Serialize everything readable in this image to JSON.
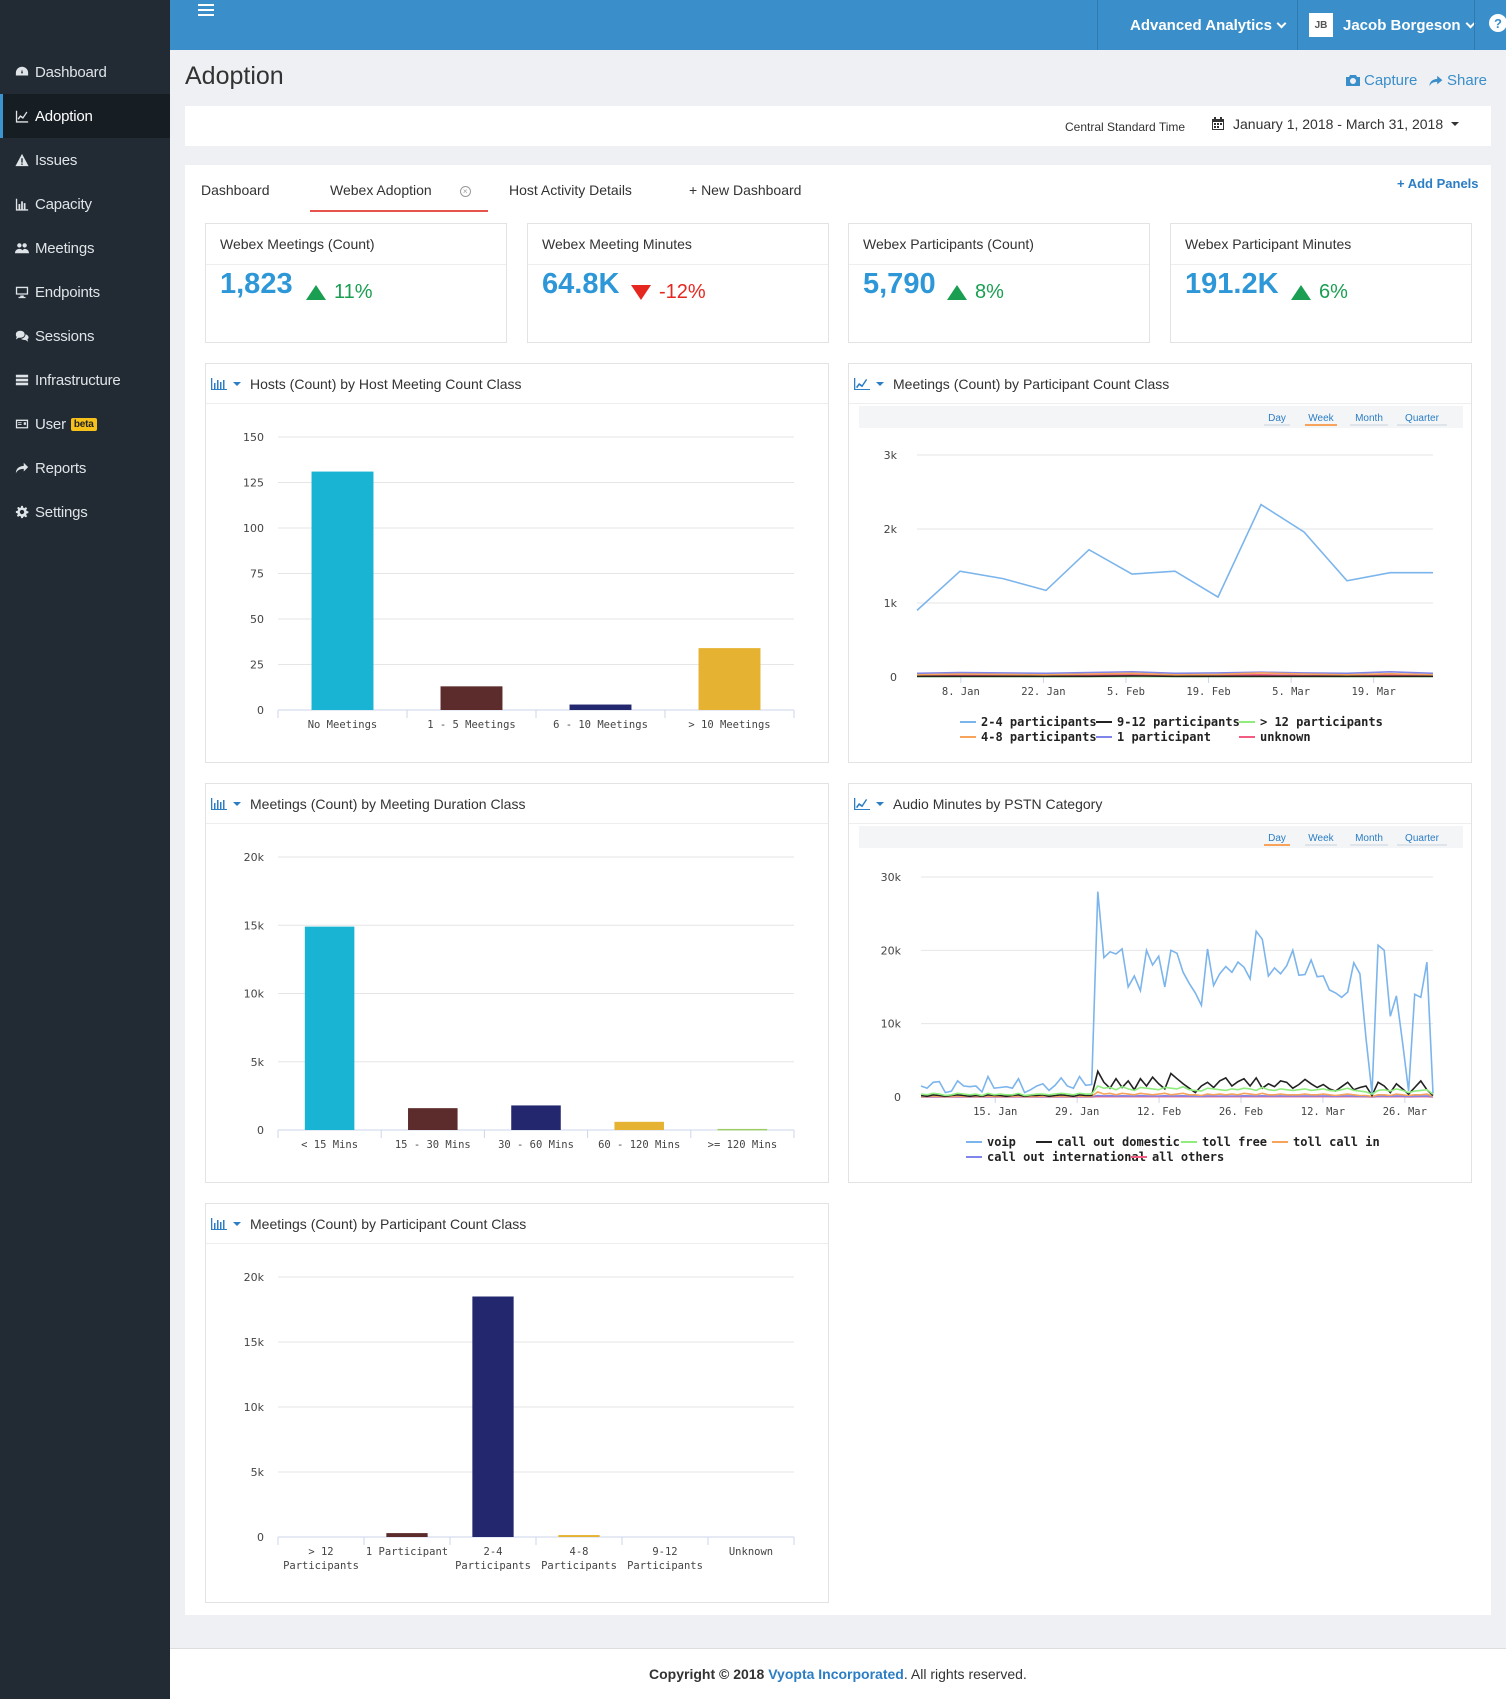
{
  "sidebar": {
    "items": [
      {
        "label": "Dashboard",
        "icon": "dashboard-icon"
      },
      {
        "label": "Adoption",
        "icon": "line-chart-icon",
        "active": true
      },
      {
        "label": "Issues",
        "icon": "warning-icon"
      },
      {
        "label": "Capacity",
        "icon": "bar-chart-icon"
      },
      {
        "label": "Meetings",
        "icon": "users-icon"
      },
      {
        "label": "Endpoints",
        "icon": "monitor-icon"
      },
      {
        "label": "Sessions",
        "icon": "comments-icon"
      },
      {
        "label": "Infrastructure",
        "icon": "server-icon"
      },
      {
        "label": "User",
        "icon": "id-card-icon",
        "badge": "beta"
      },
      {
        "label": "Reports",
        "icon": "share-arrow-icon"
      },
      {
        "label": "Settings",
        "icon": "gear-icon"
      }
    ]
  },
  "topbar": {
    "analytics_label": "Advanced Analytics",
    "user_initials": "JB",
    "user_name": "Jacob Borgeson",
    "help": "?"
  },
  "header": {
    "title": "Adoption",
    "capture": "Capture",
    "share": "Share",
    "timezone": "Central Standard Time",
    "date_range": "January 1, 2018 - March 31, 2018"
  },
  "tabs": {
    "items": [
      "Dashboard",
      "Webex Adoption",
      "Host Activity Details",
      "+ New Dashboard"
    ],
    "active_index": 1,
    "add_panels": "+ Add Panels"
  },
  "kpis": [
    {
      "title": "Webex Meetings (Count)",
      "value": "1,823",
      "change": "11%",
      "direction": "up"
    },
    {
      "title": "Webex Meeting Minutes",
      "value": "64.8K",
      "change": "-12%",
      "direction": "down"
    },
    {
      "title": "Webex Participants (Count)",
      "value": "5,790",
      "change": "8%",
      "direction": "up"
    },
    {
      "title": "Webex Participant Minutes",
      "value": "191.2K",
      "change": "6%",
      "direction": "up"
    }
  ],
  "colors": {
    "accent": "#3a8ec9",
    "up": "#199e52",
    "down": "#e5271f",
    "bar_cyan": "#19b3d4",
    "bar_maroon": "#5c2b2b",
    "bar_navy": "#23276e",
    "bar_gold": "#e6b231",
    "bar_green": "#9ccc65"
  },
  "range_selector": [
    "Day",
    "Week",
    "Month",
    "Quarter"
  ],
  "panels": {
    "hosts": {
      "title": "Hosts (Count) by Host Meeting Count Class"
    },
    "meetings_participants_line": {
      "title": "Meetings (Count) by Participant Count Class",
      "selected_range": "Week"
    },
    "duration": {
      "title": "Meetings (Count) by Meeting Duration Class"
    },
    "audio": {
      "title": "Audio Minutes by PSTN Category",
      "selected_range": "Day"
    },
    "participants_bar": {
      "title": "Meetings (Count) by Participant Count Class"
    }
  },
  "chart_data": [
    {
      "id": "hosts",
      "type": "bar",
      "categories": [
        "No Meetings",
        "1 - 5 Meetings",
        "6 - 10 Meetings",
        "> 10 Meetings"
      ],
      "values": [
        131,
        13,
        3,
        34
      ],
      "colors": [
        "#19b3d4",
        "#5c2b2b",
        "#23276e",
        "#e6b231"
      ],
      "ylim": [
        0,
        150
      ],
      "yticks": [
        0,
        25,
        50,
        75,
        100,
        125,
        150
      ],
      "yticklabels": [
        "0",
        "25",
        "50",
        "75",
        "100",
        "125",
        "150"
      ]
    },
    {
      "id": "meetings_participants_line",
      "type": "line",
      "x": [
        "2018-01-01",
        "2018-01-08",
        "2018-01-15",
        "2018-01-22",
        "2018-01-29",
        "2018-02-05",
        "2018-02-12",
        "2018-02-19",
        "2018-02-26",
        "2018-03-05",
        "2018-03-12",
        "2018-03-19",
        "2018-03-26"
      ],
      "xticklabels": [
        "8. Jan",
        "22. Jan",
        "5. Feb",
        "19. Feb",
        "5. Mar",
        "19. Mar"
      ],
      "ylim": [
        0,
        3000
      ],
      "yticks": [
        0,
        1000,
        2000,
        3000
      ],
      "yticklabels": [
        "0",
        "1k",
        "2k",
        "3k"
      ],
      "series": [
        {
          "name": "2-4 participants",
          "color": "#7cb5ec",
          "values": [
            900,
            1430,
            1330,
            1170,
            1720,
            1390,
            1430,
            1080,
            2330,
            1960,
            1300,
            1410,
            1410
          ]
        },
        {
          "name": "4-8 participants",
          "color": "#f7a35c",
          "values": [
            30,
            40,
            35,
            30,
            40,
            50,
            30,
            35,
            55,
            40,
            30,
            45,
            30
          ]
        },
        {
          "name": "9-12 participants",
          "color": "#222222",
          "values": [
            10,
            10,
            10,
            10,
            10,
            15,
            10,
            10,
            10,
            10,
            10,
            10,
            10
          ]
        },
        {
          "name": "1 participant",
          "color": "#8085e9",
          "values": [
            50,
            60,
            55,
            50,
            60,
            70,
            50,
            55,
            65,
            55,
            50,
            70,
            50
          ]
        },
        {
          "name": "> 12 participants",
          "color": "#90ed7d",
          "values": [
            5,
            5,
            5,
            5,
            5,
            5,
            5,
            5,
            5,
            5,
            5,
            5,
            5
          ]
        },
        {
          "name": "unknown",
          "color": "#f15c80",
          "values": [
            20,
            25,
            20,
            20,
            25,
            30,
            20,
            25,
            30,
            20,
            20,
            30,
            20
          ]
        }
      ]
    },
    {
      "id": "duration",
      "type": "bar",
      "categories": [
        "< 15 Mins",
        "15 - 30 Mins",
        "30 - 60 Mins",
        "60 - 120 Mins",
        ">= 120 Mins"
      ],
      "values": [
        14900,
        1600,
        1800,
        600,
        80
      ],
      "colors": [
        "#19b3d4",
        "#5c2b2b",
        "#23276e",
        "#e6b231",
        "#9ccc65"
      ],
      "ylim": [
        0,
        20000
      ],
      "yticks": [
        0,
        5000,
        10000,
        15000,
        20000
      ],
      "yticklabels": [
        "0",
        "5k",
        "10k",
        "15k",
        "20k"
      ]
    },
    {
      "id": "audio",
      "type": "line",
      "x_start": "2018-01-01",
      "x_end": "2018-03-31",
      "xticklabels": [
        "15. Jan",
        "29. Jan",
        "12. Feb",
        "26. Feb",
        "12. Mar",
        "26. Mar"
      ],
      "ylim": [
        0,
        30000
      ],
      "yticks": [
        0,
        10000,
        20000,
        30000
      ],
      "yticklabels": [
        "0",
        "10k",
        "20k",
        "30k"
      ],
      "series": [
        {
          "name": "voip",
          "color": "#7cb5ec",
          "values": [
            1500,
            1200,
            2000,
            2100,
            600,
            800,
            2200,
            1500,
            1400,
            1500,
            700,
            2800,
            1200,
            1300,
            1400,
            1200,
            2500,
            600,
            1000,
            1500,
            1800,
            900,
            1600,
            2600,
            1500,
            1200,
            2800,
            1600,
            1700,
            28000,
            19000,
            19800,
            19500,
            20200,
            15000,
            16500,
            14500,
            20000,
            18000,
            19200,
            15000,
            20000,
            19600,
            17000,
            15500,
            14200,
            12500,
            20200,
            15200,
            16800,
            17800,
            17000,
            18400,
            17700,
            16100,
            22600,
            21500,
            16500,
            17600,
            16800,
            17900,
            20000,
            16600,
            16700,
            18700,
            16400,
            16500,
            14600,
            14200,
            13600,
            14300,
            18300,
            16800,
            8000,
            500,
            20700,
            20000,
            11000,
            13800,
            7500,
            800,
            14000,
            13600,
            18400,
            500
          ]
        },
        {
          "name": "toll free",
          "color": "#90ed7d",
          "values": [
            400,
            300,
            500,
            400,
            200,
            300,
            500,
            400,
            300,
            400,
            200,
            500,
            300,
            400,
            300,
            300,
            500,
            200,
            300,
            400,
            400,
            300,
            400,
            500,
            400,
            300,
            500,
            400,
            400,
            1500,
            1200,
            1300,
            1000,
            1400,
            1100,
            900,
            1300,
            1200,
            1100,
            1000,
            1300,
            1200,
            1100,
            1400,
            1000,
            900,
            800,
            1200,
            1100,
            1000,
            900,
            1100,
            1000,
            1200,
            1100,
            900,
            1300,
            1000,
            900,
            1100,
            1000,
            900,
            1000,
            1100,
            900,
            1000,
            1100,
            900,
            800,
            1000,
            1200,
            900,
            800,
            700,
            400,
            900,
            1000,
            800,
            1100,
            900,
            600,
            800,
            900,
            1000,
            400
          ]
        },
        {
          "name": "call out domestic",
          "color": "#222222",
          "values": [
            200,
            100,
            300,
            200,
            100,
            200,
            300,
            200,
            100,
            200,
            100,
            300,
            200,
            200,
            100,
            200,
            300,
            100,
            200,
            200,
            300,
            100,
            200,
            300,
            200,
            100,
            300,
            200,
            200,
            3500,
            2000,
            1200,
            2500,
            1300,
            2200,
            1000,
            2500,
            1500,
            2700,
            1800,
            1100,
            3200,
            2500,
            1800,
            1200,
            600,
            1500,
            2000,
            1300,
            2200,
            2600,
            1500,
            2100,
            2500,
            1500,
            2600,
            1200,
            1800,
            1400,
            2200,
            2000,
            1200,
            1700,
            2400,
            1800,
            1300,
            1700,
            1100,
            800,
            1400,
            2000,
            1000,
            1300,
            1500,
            200,
            2000,
            1500,
            600,
            1800,
            1100,
            400,
            1300,
            2200,
            1000,
            200
          ]
        },
        {
          "name": "toll call in",
          "color": "#f7a35c",
          "values": [
            100,
            100,
            150,
            100,
            50,
            100,
            150,
            100,
            100,
            100,
            50,
            150,
            100,
            100,
            100,
            100,
            150,
            50,
            100,
            100,
            150,
            100,
            100,
            150,
            100,
            100,
            150,
            100,
            100,
            700,
            400,
            500,
            300,
            500,
            400,
            300,
            500,
            400,
            300,
            400,
            500,
            300,
            400,
            500,
            300,
            300,
            200,
            400,
            300,
            400,
            300,
            400,
            300,
            500,
            400,
            300,
            500,
            300,
            300,
            400,
            300,
            300,
            300,
            400,
            300,
            300,
            400,
            300,
            200,
            300,
            400,
            300,
            200,
            200,
            100,
            300,
            300,
            200,
            400,
            300,
            200,
            300,
            300,
            400,
            100
          ]
        },
        {
          "name": "call out international",
          "color": "#8085e9",
          "values": [
            50,
            50,
            80,
            60,
            30,
            50,
            80,
            60,
            50,
            60,
            30,
            80,
            50,
            60,
            50,
            50,
            80,
            30,
            50,
            60,
            70,
            50,
            60,
            80,
            60,
            50,
            80,
            60,
            60,
            200,
            150,
            180,
            120,
            170,
            150,
            120,
            180,
            150,
            130,
            140,
            170,
            130,
            150,
            170,
            120,
            110,
            100,
            150,
            130,
            140,
            120,
            140,
            130,
            160,
            150,
            120,
            170,
            130,
            120,
            150,
            130,
            120,
            130,
            150,
            120,
            130,
            150,
            120,
            100,
            130,
            150,
            120,
            100,
            90,
            50,
            120,
            130,
            100,
            150,
            120,
            80,
            110,
            120,
            150,
            50
          ]
        },
        {
          "name": "all others",
          "color": "#f15c80",
          "values": [
            20,
            20,
            30,
            20,
            10,
            20,
            30,
            20,
            20,
            20,
            10,
            30,
            20,
            20,
            20,
            20,
            30,
            10,
            20,
            20,
            30,
            20,
            20,
            30,
            20,
            20,
            30,
            20,
            20,
            80,
            60,
            70,
            50,
            70,
            60,
            50,
            70,
            60,
            50,
            60,
            70,
            50,
            60,
            70,
            50,
            50,
            40,
            60,
            50,
            60,
            50,
            60,
            50,
            70,
            60,
            50,
            70,
            50,
            50,
            60,
            50,
            50,
            50,
            60,
            50,
            50,
            60,
            50,
            40,
            50,
            60,
            50,
            40,
            40,
            20,
            50,
            50,
            40,
            60,
            50,
            30,
            40,
            50,
            60,
            20
          ]
        }
      ]
    },
    {
      "id": "participants_bar",
      "type": "bar",
      "categories": [
        "> 12 Participants",
        "1 Participant",
        "2-4 Participants",
        "4-8 Participants",
        "9-12 Participants",
        "Unknown"
      ],
      "values": [
        0,
        300,
        18500,
        150,
        0,
        0
      ],
      "colors": [
        "#19b3d4",
        "#5c2b2b",
        "#23276e",
        "#e6b231",
        "#9ccc65",
        "#19b3d4"
      ],
      "ylim": [
        0,
        20000
      ],
      "yticks": [
        0,
        5000,
        10000,
        15000,
        20000
      ],
      "yticklabels": [
        "0",
        "5k",
        "10k",
        "15k",
        "20k"
      ]
    }
  ],
  "footer": {
    "prefix": "Copyright © 2018 ",
    "company": "Vyopta Incorporated",
    "suffix": ". All rights reserved."
  }
}
